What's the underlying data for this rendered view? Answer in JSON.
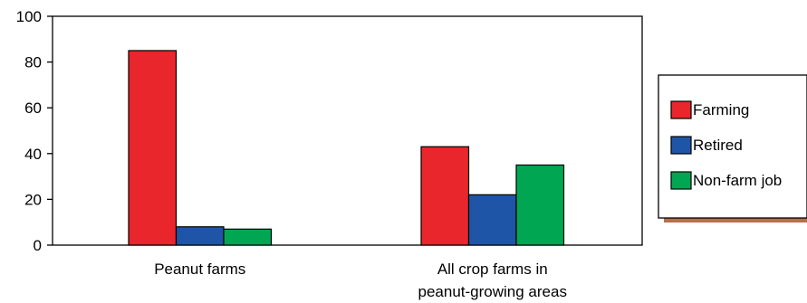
{
  "chart_data": {
    "type": "bar",
    "categories": [
      [
        "Peanut farms"
      ],
      [
        "All crop farms in",
        "peanut-growing areas"
      ]
    ],
    "series": [
      {
        "name": "Farming",
        "values": [
          85,
          43
        ],
        "color": "#e8262b"
      },
      {
        "name": "Retired",
        "values": [
          8,
          22
        ],
        "color": "#1f55a6"
      },
      {
        "name": "Non-farm job",
        "values": [
          7,
          35
        ],
        "color": "#00a651"
      }
    ],
    "yticks": [
      0,
      20,
      40,
      60,
      80,
      100
    ],
    "ylim": [
      0,
      100
    ],
    "title": "",
    "xlabel": "",
    "ylabel": "",
    "legend_position": "right",
    "grid": false
  },
  "colors": {
    "axis": "#000000",
    "legend_shadow": "#b5704d",
    "background": "#ffffff"
  }
}
